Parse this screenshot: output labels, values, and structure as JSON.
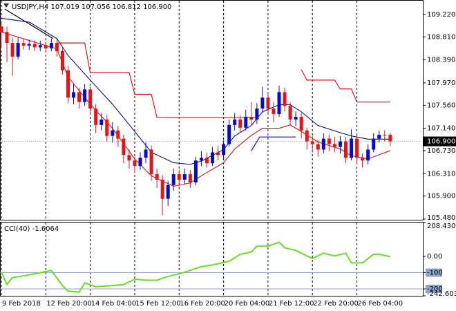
{
  "chart_data": [
    {
      "type": "candlestick",
      "title": "USDJPY,H4  107.019 107.056 106.812 106.900",
      "categories": [
        "9 Feb 2018",
        null,
        null,
        null,
        null,
        null,
        null,
        null,
        "12 Feb 20:00",
        null,
        null,
        null,
        null,
        null,
        null,
        null,
        "14 Feb 04:00",
        null,
        null,
        null,
        null,
        null,
        null,
        null,
        "15 Feb 12:00",
        null,
        null,
        null,
        null,
        null,
        null,
        null,
        "16 Feb 20:00",
        null,
        null,
        null,
        null,
        null,
        null,
        null,
        "20 Feb 04:00",
        null,
        null,
        null,
        null,
        null,
        null,
        null,
        "21 Feb 12:00",
        null,
        null,
        null,
        null,
        null,
        null,
        null,
        "22 Feb 20:00",
        null,
        null,
        null,
        null,
        null,
        null,
        null,
        "26 Feb 04:00",
        null,
        null,
        null,
        null,
        null,
        null
      ],
      "open": [
        109.0,
        108.9,
        108.7,
        108.45,
        108.7,
        108.65,
        108.68,
        108.62,
        108.66,
        108.6,
        108.7,
        108.55,
        108.2,
        107.7,
        107.8,
        107.62,
        107.85,
        107.5,
        107.2,
        107.3,
        107.0,
        107.1,
        106.95,
        106.65,
        106.55,
        106.45,
        106.6,
        106.75,
        106.3,
        106.2,
        105.85,
        106.1,
        106.3,
        106.2,
        106.3,
        106.15,
        106.55,
        106.6,
        106.5,
        106.7,
        106.65,
        106.85,
        107.2,
        107.3,
        107.15,
        107.35,
        107.3,
        107.5,
        107.7,
        107.5,
        107.4,
        107.8,
        107.55,
        107.3,
        107.35,
        107.1,
        106.9,
        106.85,
        106.75,
        106.95,
        106.85,
        106.8,
        106.9,
        106.6,
        106.95,
        106.6,
        106.55,
        106.75,
        106.95,
        107.02,
        107.019
      ],
      "high": [
        109.1,
        109.0,
        108.8,
        108.8,
        108.78,
        108.76,
        108.75,
        108.74,
        108.72,
        108.78,
        108.78,
        108.62,
        108.28,
        107.95,
        107.88,
        107.95,
        107.9,
        107.58,
        107.42,
        107.38,
        107.25,
        107.18,
        107.02,
        106.75,
        106.62,
        106.7,
        106.88,
        106.82,
        106.4,
        106.28,
        106.18,
        106.4,
        106.38,
        106.4,
        106.38,
        106.62,
        106.72,
        106.7,
        106.8,
        106.82,
        106.92,
        107.3,
        107.42,
        107.38,
        107.48,
        107.62,
        107.6,
        107.9,
        107.8,
        107.62,
        107.92,
        107.88,
        107.62,
        107.45,
        107.42,
        107.15,
        107.0,
        106.92,
        107.05,
        107.02,
        106.98,
        107.0,
        106.98,
        107.12,
        107.02,
        106.68,
        106.85,
        107.05,
        107.1,
        107.1,
        107.056
      ],
      "low": [
        108.6,
        108.35,
        108.1,
        108.4,
        108.58,
        108.57,
        108.55,
        108.55,
        108.52,
        108.55,
        108.45,
        108.12,
        107.6,
        107.58,
        107.5,
        107.55,
        107.4,
        107.05,
        107.1,
        106.9,
        106.88,
        106.8,
        106.5,
        106.4,
        106.32,
        106.38,
        106.5,
        106.18,
        106.05,
        105.55,
        105.72,
        106.0,
        106.08,
        106.12,
        106.05,
        106.1,
        106.45,
        106.42,
        106.45,
        106.55,
        106.58,
        106.8,
        107.1,
        107.05,
        107.1,
        107.2,
        107.22,
        107.42,
        107.4,
        107.25,
        107.35,
        107.45,
        107.2,
        107.18,
        106.95,
        106.75,
        106.7,
        106.62,
        106.68,
        106.72,
        106.7,
        106.68,
        106.5,
        106.55,
        106.48,
        106.42,
        106.48,
        106.7,
        106.88,
        106.9,
        106.812
      ],
      "close": [
        108.9,
        108.7,
        108.45,
        108.7,
        108.65,
        108.68,
        108.62,
        108.66,
        108.6,
        108.7,
        108.55,
        108.2,
        107.7,
        107.8,
        107.62,
        107.85,
        107.5,
        107.2,
        107.3,
        107.0,
        107.1,
        106.95,
        106.65,
        106.55,
        106.45,
        106.6,
        106.75,
        106.3,
        106.2,
        105.85,
        106.1,
        106.3,
        106.2,
        106.3,
        106.15,
        106.55,
        106.6,
        106.5,
        106.7,
        106.65,
        106.85,
        107.2,
        107.3,
        107.15,
        107.35,
        107.3,
        107.5,
        107.7,
        107.5,
        107.4,
        107.8,
        107.55,
        107.3,
        107.35,
        107.1,
        106.9,
        106.85,
        106.75,
        106.95,
        106.85,
        106.8,
        106.9,
        106.6,
        106.95,
        106.6,
        106.55,
        106.75,
        106.95,
        107.02,
        107.019,
        106.9
      ],
      "up_color": "#0a0acd",
      "down_color": "#e0161a",
      "ylim": [
        105.467,
        109.472
      ],
      "yticks": [
        {
          "value": 109.22,
          "label": "109.220"
        },
        {
          "value": 108.81,
          "label": "108.810"
        },
        {
          "value": 108.39,
          "label": "108.390"
        },
        {
          "value": 107.97,
          "label": "107.970"
        },
        {
          "value": 107.56,
          "label": "107.560"
        },
        {
          "value": 107.14,
          "label": "107.140"
        },
        {
          "value": 106.73,
          "label": "106.730"
        },
        {
          "value": 106.31,
          "label": "106.310"
        },
        {
          "value": 105.9,
          "label": "105.900"
        },
        {
          "value": 105.48,
          "label": "105.480"
        }
      ],
      "last_price": {
        "value": 106.9,
        "label": "106.900"
      },
      "overlays": [
        {
          "color": "#1a237e",
          "x": [
            0,
            5,
            10,
            12,
            16,
            20,
            24,
            27,
            31,
            34,
            36,
            40,
            42,
            45,
            47,
            50,
            52,
            54,
            57,
            61,
            63,
            66,
            70
          ],
          "values": [
            109.15,
            109.08,
            108.78,
            108.47,
            108.02,
            107.58,
            107.08,
            106.7,
            106.51,
            106.48,
            106.54,
            106.75,
            107.0,
            107.19,
            107.44,
            107.57,
            107.57,
            107.44,
            107.19,
            107.06,
            107.0,
            106.94,
            106.94
          ]
        },
        {
          "color": "#c62828",
          "x": [
            0,
            10,
            12,
            16,
            20,
            24,
            27,
            31,
            34,
            36,
            40,
            42,
            45,
            47,
            50,
            52,
            54,
            57,
            61,
            63,
            66,
            70
          ],
          "values": [
            108.9,
            108.59,
            108.08,
            107.58,
            107.14,
            106.58,
            106.27,
            106.08,
            106.14,
            106.27,
            106.51,
            106.76,
            107.01,
            107.14,
            107.14,
            107.2,
            107.08,
            106.89,
            106.76,
            106.64,
            106.58,
            106.73
          ]
        },
        {
          "color": "#e0161a",
          "x": [
            10,
            15,
            16,
            23,
            24,
            27,
            28,
            46,
            50,
            54,
            55,
            60,
            61,
            63,
            64,
            70
          ],
          "values": [
            108.7,
            108.7,
            108.16,
            108.16,
            107.76,
            107.76,
            107.34,
            107.34,
            null,
            108.21,
            108.02,
            108.02,
            107.86,
            107.86,
            107.62,
            107.62
          ]
        },
        {
          "color": "#0a0acd",
          "x": [
            45,
            46.5,
            53
          ],
          "values": [
            106.73,
            106.98,
            106.98
          ]
        },
        {
          "color": "#000000",
          "x": [
            0.6,
            9.3
          ],
          "values": [
            109.32,
            108.78
          ]
        }
      ]
    },
    {
      "type": "line",
      "title": "CCI(40) -1.6064",
      "color": "#66dd22",
      "x": [
        0,
        1,
        2,
        4,
        7,
        9,
        11,
        12,
        14,
        15,
        17,
        20,
        22,
        24,
        26,
        28,
        30,
        32,
        33,
        36,
        38,
        41,
        43,
        45,
        46,
        48,
        50,
        51,
        53,
        55,
        56,
        58,
        60,
        62,
        63,
        65,
        67,
        68,
        70
      ],
      "values": [
        -97,
        -173,
        -130,
        -120,
        -100,
        -87,
        -180,
        -213,
        -220,
        -163,
        -187,
        -180,
        -173,
        -140,
        -147,
        -147,
        -123,
        -107,
        -97,
        -63,
        -53,
        -30,
        13,
        27,
        63,
        63,
        87,
        53,
        37,
        3,
        -13,
        20,
        3,
        20,
        -40,
        -40,
        13,
        13,
        -1.6064
      ],
      "ylim": [
        -242.6037,
        208.4306
      ],
      "yticks": [
        {
          "value": 208.4306,
          "label": "208.4306"
        },
        {
          "value": 0,
          "label": "0.00"
        },
        -100,
        -200,
        {
          "value": -242.6037,
          "label": "-242.6037"
        }
      ]
    }
  ]
}
